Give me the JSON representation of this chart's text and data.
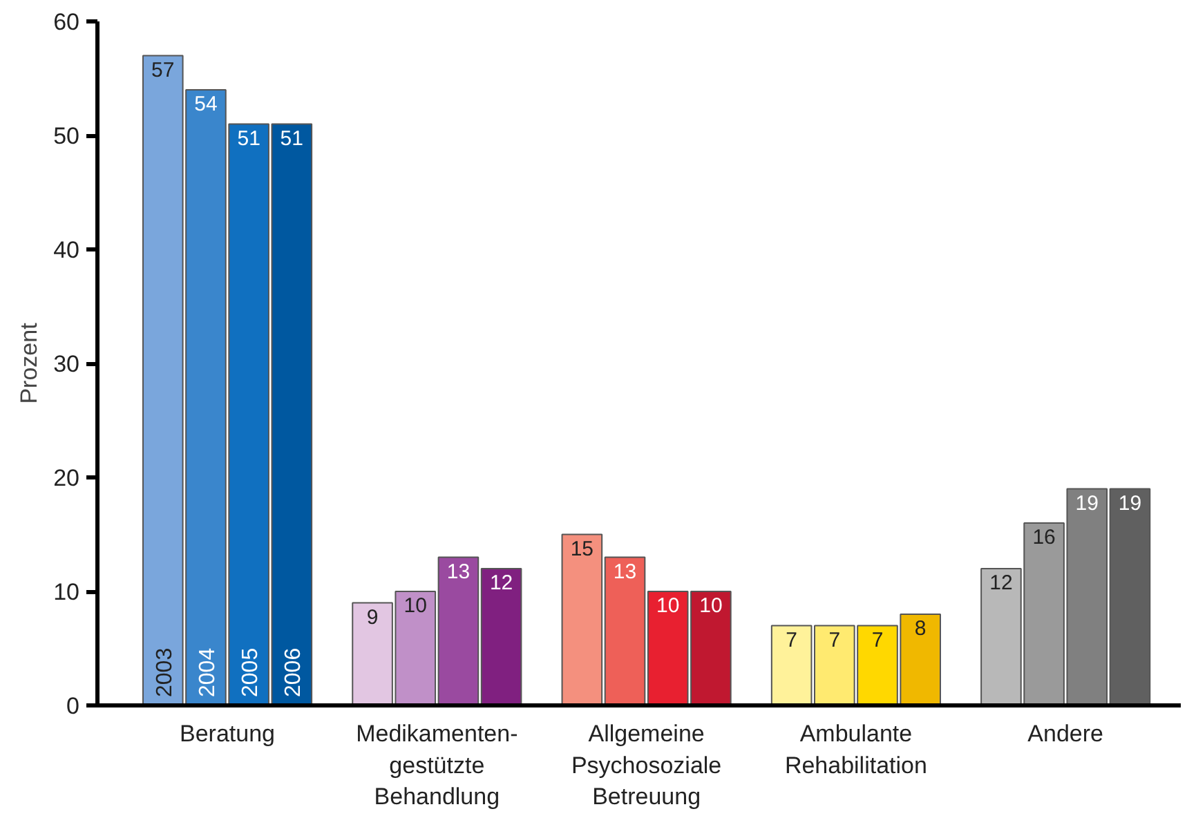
{
  "chart_data": {
    "type": "bar",
    "ylabel": "Prozent",
    "categories": [
      "Beratung",
      "Medikamenten-\ngestützte\nBehandlung",
      "Allgemeine\nPsychosoziale\nBetreuung",
      "Ambulante\nRehabilitation",
      "Andere"
    ],
    "series": [
      {
        "name": "2003",
        "colors": [
          "#7aa6dc",
          "#e2c6e2",
          "#f4907e",
          "#fff29a",
          "#b8b8b8"
        ],
        "values": [
          57,
          9,
          15,
          7,
          12
        ]
      },
      {
        "name": "2004",
        "colors": [
          "#3a86cc",
          "#c090c8",
          "#ee6058",
          "#ffea70",
          "#9a9a9a"
        ],
        "values": [
          54,
          10,
          13,
          7,
          16
        ]
      },
      {
        "name": "2005",
        "colors": [
          "#1070c0",
          "#9a4aa0",
          "#e82030",
          "#ffd800",
          "#808080"
        ],
        "values": [
          51,
          13,
          10,
          7,
          19
        ]
      },
      {
        "name": "2006",
        "colors": [
          "#0058a0",
          "#802080",
          "#c01830",
          "#f0b800",
          "#606060"
        ],
        "values": [
          51,
          12,
          10,
          8,
          19
        ]
      }
    ],
    "ylim": [
      0,
      60
    ],
    "yticks": [
      0,
      10,
      20,
      30,
      40,
      50,
      60
    ],
    "grid": false,
    "data_labels": true
  }
}
